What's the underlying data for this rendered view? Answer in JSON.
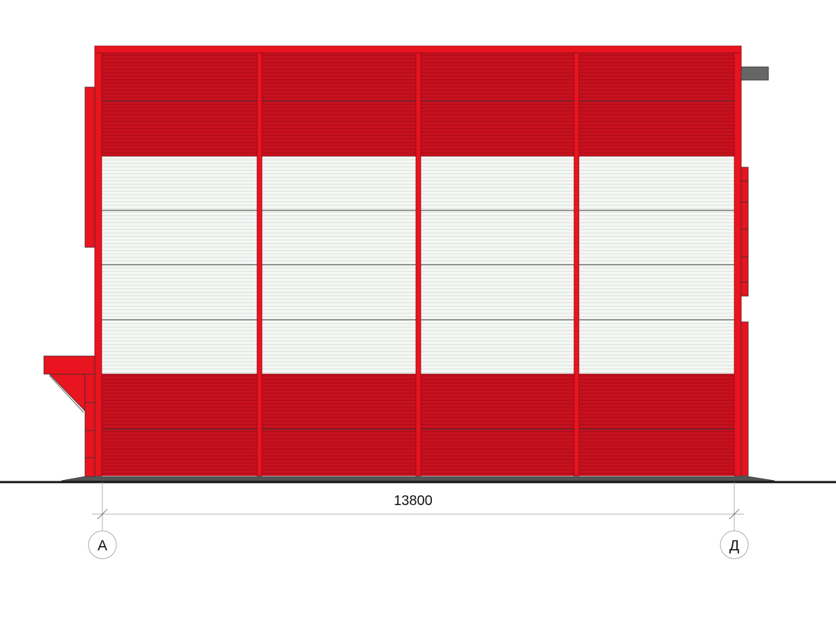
{
  "drawing": {
    "dimension_label": "13800",
    "axis_left_label": "А",
    "axis_right_label": "Д"
  },
  "colors": {
    "red_panel": "#c8101f",
    "red_trim": "#e8141f",
    "white_panel": "#f2f4f2",
    "grey": "#6a6a6a",
    "ground": "#111111"
  }
}
